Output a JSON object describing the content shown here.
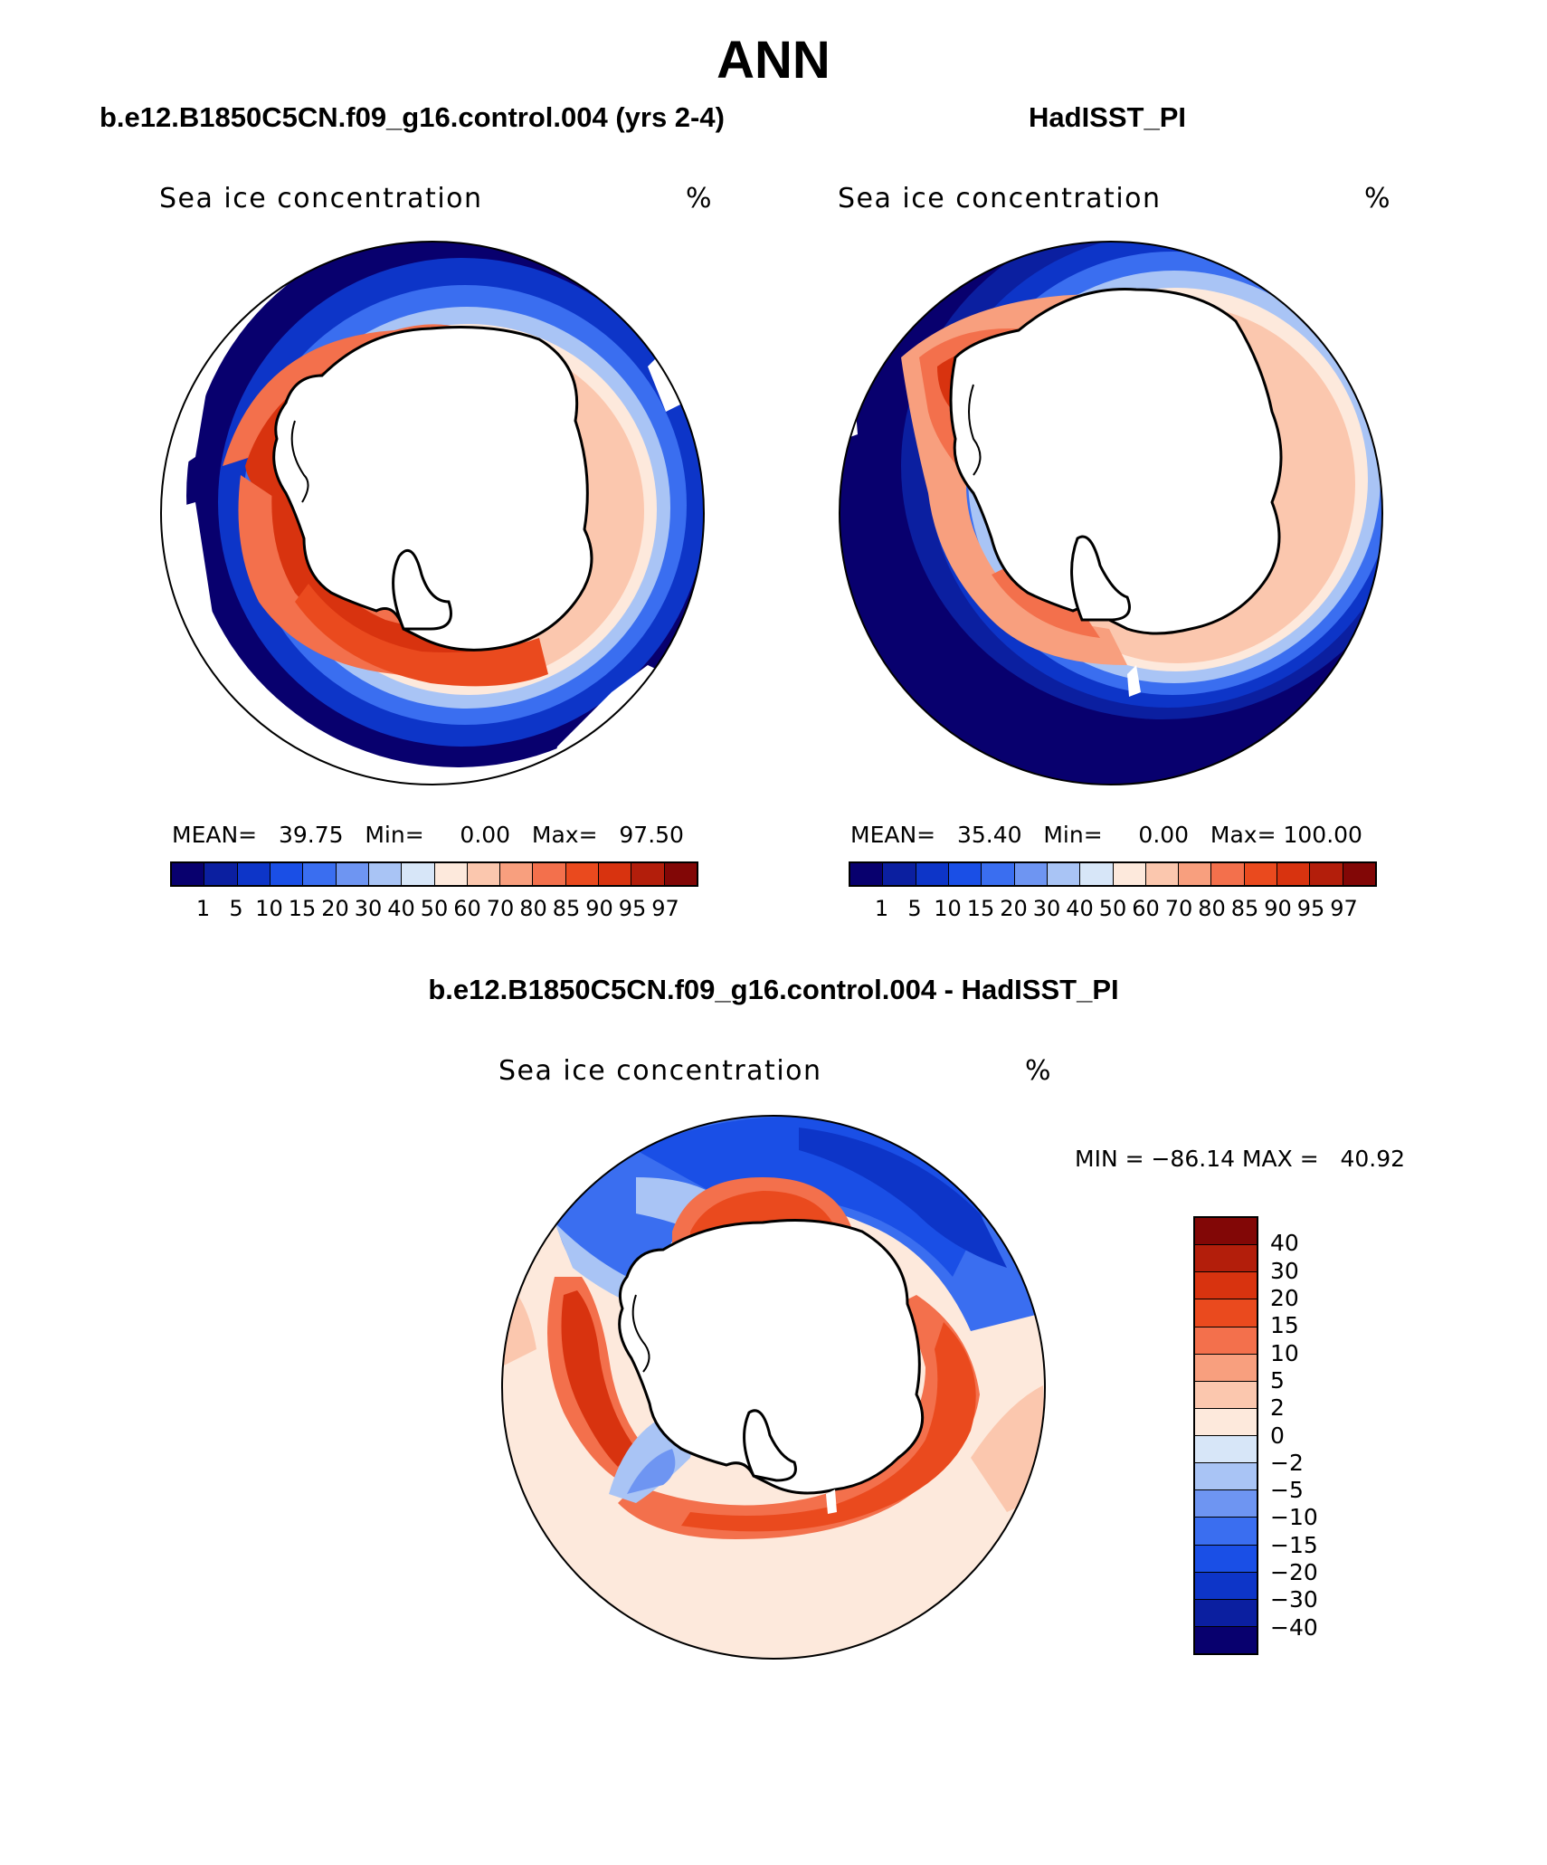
{
  "title": "ANN",
  "panels": {
    "left": {
      "subtitle": "b.e12.B1850C5CN.f09_g16.control.004 (yrs 2-4)",
      "field_label": "Sea ice concentration",
      "units": "%",
      "stats": "MEAN=   39.75   Min=     0.00   Max=   97.50",
      "mean": 39.75,
      "min": 0.0,
      "max": 97.5
    },
    "right": {
      "subtitle": "HadISST_PI",
      "field_label": "Sea ice concentration",
      "units": "%",
      "stats": "MEAN=   35.40   Min=     0.00   Max= 100.00",
      "mean": 35.4,
      "min": 0.0,
      "max": 100.0
    },
    "diff": {
      "subtitle": "b.e12.B1850C5CN.f09_g16.control.004 - HadISST_PI",
      "field_label": "Sea ice concentration",
      "units": "%",
      "minmax": "MIN = −86.14 MAX =   40.92",
      "min": -86.14,
      "max": 40.92
    }
  },
  "colorbar_abs": {
    "levels": [
      "1",
      "5",
      "10",
      "15",
      "20",
      "30",
      "40",
      "50",
      "60",
      "70",
      "80",
      "85",
      "90",
      "95",
      "97"
    ],
    "colors": [
      "#08006e",
      "#0b1fa0",
      "#0d35c8",
      "#1a4fe6",
      "#3a6ef0",
      "#6e95f2",
      "#a9c4f5",
      "#d7e6f8",
      "#fde9dc",
      "#fbc7ae",
      "#f89f7e",
      "#f3704c",
      "#ea4a1e",
      "#d8330f",
      "#b31e0b",
      "#820706"
    ]
  },
  "colorbar_diff": {
    "levels": [
      "40",
      "30",
      "20",
      "15",
      "10",
      "5",
      "2",
      "0",
      "−2",
      "−5",
      "−10",
      "−15",
      "−20",
      "−30",
      "−40"
    ],
    "colors": [
      "#820706",
      "#b31e0b",
      "#d8330f",
      "#ea4a1e",
      "#f3704c",
      "#f89f7e",
      "#fbc7ae",
      "#fde9dc",
      "#d7e6f8",
      "#a9c4f5",
      "#6e95f2",
      "#3a6ef0",
      "#1a4fe6",
      "#0d35c8",
      "#0b1fa0",
      "#08006e"
    ]
  }
}
